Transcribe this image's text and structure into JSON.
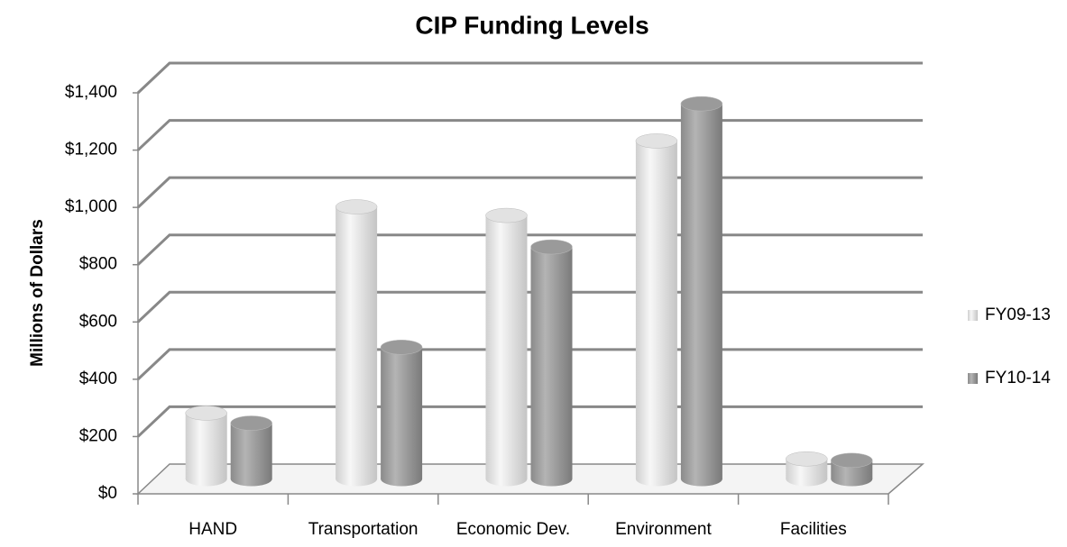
{
  "chart_data": {
    "type": "bar",
    "title": "CIP Funding Levels",
    "y_axis_label": "Millions of Dollars",
    "categories": [
      "HAND",
      "Transportation",
      "Economic Dev.",
      "Environment",
      "Facilities"
    ],
    "series": [
      {
        "name": "FY09-13",
        "color": "#e2e2e2",
        "values": [
          230,
          950,
          920,
          1180,
          70
        ]
      },
      {
        "name": "FY10-14",
        "color": "#9a9a9a",
        "values": [
          195,
          460,
          810,
          1310,
          65
        ]
      }
    ],
    "ylim": [
      0,
      1400
    ],
    "yticks": [
      {
        "value": 0,
        "label": "$0"
      },
      {
        "value": 200,
        "label": "$200"
      },
      {
        "value": 400,
        "label": "$400"
      },
      {
        "value": 600,
        "label": "$600"
      },
      {
        "value": 800,
        "label": "$800"
      },
      {
        "value": 1000,
        "label": "$1,000"
      },
      {
        "value": 1200,
        "label": "$1,200"
      },
      {
        "value": 1400,
        "label": "$1,400"
      }
    ],
    "grid": true,
    "legend": "right"
  }
}
